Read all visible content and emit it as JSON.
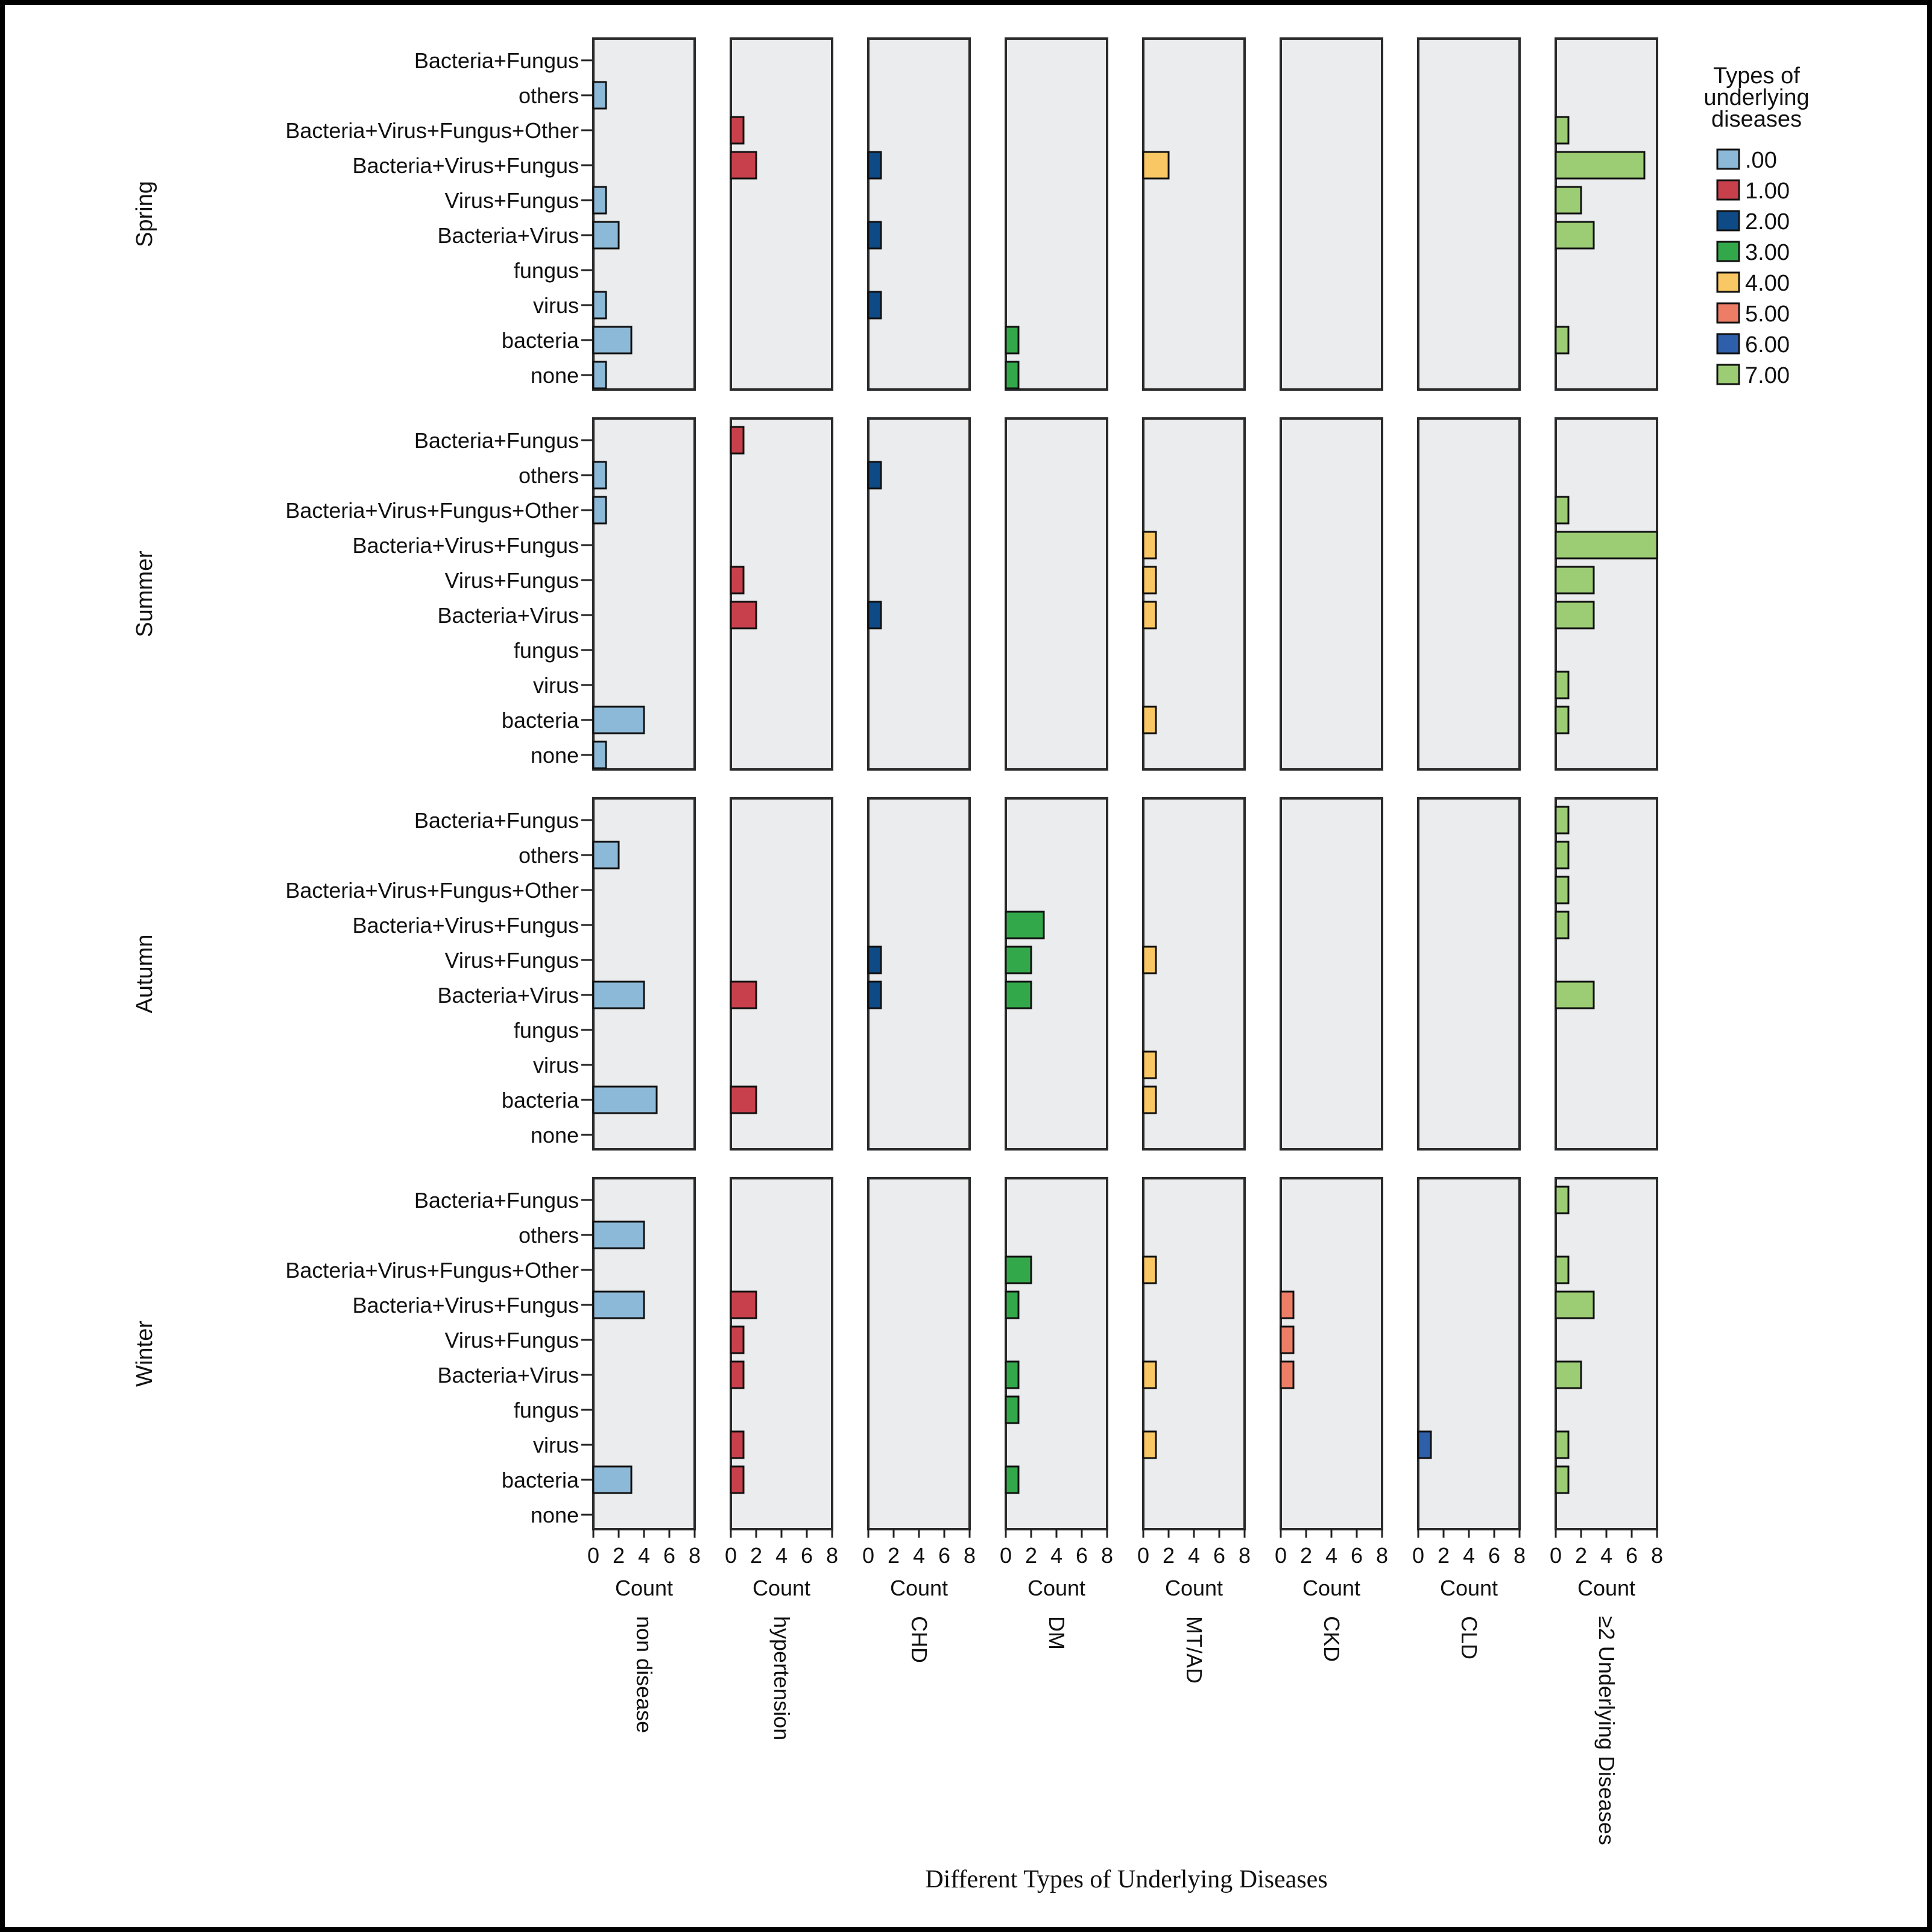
{
  "chart_data": {
    "type": "bar",
    "orientation": "horizontal",
    "title": "Different Types of Underlying Diseases",
    "xlabel": "Count",
    "xlim": [
      0,
      8
    ],
    "xticks": [
      "0",
      "2",
      "4",
      "6",
      "8"
    ],
    "rows": [
      "Spring",
      "Summer",
      "Autumn",
      "Winter"
    ],
    "columns": [
      "non disease",
      "hypertension",
      "CHD",
      "DM",
      "MT/AD",
      "CKD",
      "CLD",
      "≥2 Underlying Diseases"
    ],
    "categories": [
      "Bacteria+Fungus",
      "others",
      "Bacteria+Virus+Fungus+Other",
      "Bacteria+Virus+Fungus",
      "Virus+Fungus",
      "Bacteria+Virus",
      "fungus",
      "virus",
      "bacteria",
      "none"
    ],
    "legend": {
      "title": "Types of underlying diseases",
      "position": "right",
      "items": [
        {
          "label": ".00",
          "color": "#8db9d8"
        },
        {
          "label": "1.00",
          "color": "#c8404b"
        },
        {
          "label": "2.00",
          "color": "#0d4a86"
        },
        {
          "label": "3.00",
          "color": "#33a84a"
        },
        {
          "label": "4.00",
          "color": "#f9c864"
        },
        {
          "label": "5.00",
          "color": "#ee7d66"
        },
        {
          "label": "6.00",
          "color": "#2e5faa"
        },
        {
          "label": "7.00",
          "color": "#9ccc74"
        }
      ]
    },
    "panel_background": "#ebeced",
    "values": [
      [
        [
          0,
          1,
          0,
          0,
          1,
          2,
          0,
          1,
          3,
          1
        ],
        [
          0,
          0,
          1,
          2,
          0,
          0,
          0,
          0,
          0,
          0
        ],
        [
          0,
          0,
          0,
          1,
          0,
          1,
          0,
          1,
          0,
          0
        ],
        [
          0,
          0,
          0,
          0,
          0,
          0,
          0,
          0,
          1,
          1
        ],
        [
          0,
          0,
          0,
          2,
          0,
          0,
          0,
          0,
          0,
          0
        ],
        [
          0,
          0,
          0,
          0,
          0,
          0,
          0,
          0,
          0,
          0
        ],
        [
          0,
          0,
          0,
          0,
          0,
          0,
          0,
          0,
          0,
          0
        ],
        [
          0,
          0,
          1,
          7,
          2,
          3,
          0,
          0,
          1,
          0
        ]
      ],
      [
        [
          0,
          1,
          1,
          0,
          0,
          0,
          0,
          0,
          4,
          1
        ],
        [
          1,
          0,
          0,
          0,
          1,
          2,
          0,
          0,
          0,
          0
        ],
        [
          0,
          1,
          0,
          0,
          0,
          1,
          0,
          0,
          0,
          0
        ],
        [
          0,
          0,
          0,
          0,
          0,
          0,
          0,
          0,
          0,
          0
        ],
        [
          0,
          0,
          0,
          1,
          1,
          1,
          0,
          0,
          1,
          0
        ],
        [
          0,
          0,
          0,
          0,
          0,
          0,
          0,
          0,
          0,
          0
        ],
        [
          0,
          0,
          0,
          0,
          0,
          0,
          0,
          0,
          0,
          0
        ],
        [
          0,
          0,
          1,
          8,
          3,
          3,
          0,
          1,
          1,
          0
        ]
      ],
      [
        [
          0,
          2,
          0,
          0,
          0,
          4,
          0,
          0,
          5,
          0
        ],
        [
          0,
          0,
          0,
          0,
          0,
          2,
          0,
          0,
          2,
          0
        ],
        [
          0,
          0,
          0,
          0,
          1,
          1,
          0,
          0,
          0,
          0
        ],
        [
          0,
          0,
          0,
          3,
          2,
          2,
          0,
          0,
          0,
          0
        ],
        [
          0,
          0,
          0,
          0,
          1,
          0,
          0,
          1,
          1,
          0
        ],
        [
          0,
          0,
          0,
          0,
          0,
          0,
          0,
          0,
          0,
          0
        ],
        [
          0,
          0,
          0,
          0,
          0,
          0,
          0,
          0,
          0,
          0
        ],
        [
          1,
          1,
          1,
          1,
          0,
          3,
          0,
          0,
          0,
          0
        ]
      ],
      [
        [
          0,
          4,
          0,
          4,
          0,
          0,
          0,
          0,
          3,
          0
        ],
        [
          0,
          0,
          0,
          2,
          1,
          1,
          0,
          1,
          1,
          0
        ],
        [
          0,
          0,
          0,
          0,
          0,
          0,
          0,
          0,
          0,
          0
        ],
        [
          0,
          0,
          2,
          1,
          0,
          1,
          1,
          0,
          1,
          0
        ],
        [
          0,
          0,
          1,
          0,
          0,
          1,
          0,
          1,
          0,
          0
        ],
        [
          0,
          0,
          0,
          1,
          1,
          1,
          0,
          0,
          0,
          0
        ],
        [
          0,
          0,
          0,
          0,
          0,
          0,
          0,
          1,
          0,
          0
        ],
        [
          1,
          0,
          1,
          3,
          0,
          2,
          0,
          1,
          1,
          0
        ]
      ]
    ]
  }
}
